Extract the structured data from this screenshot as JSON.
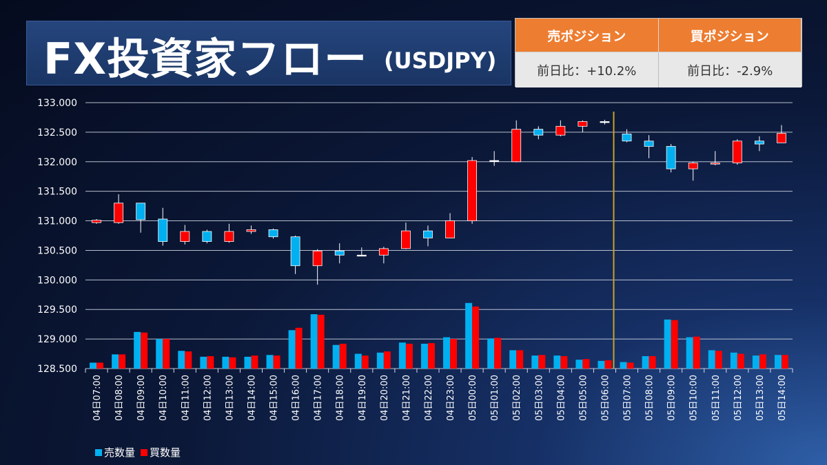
{
  "header": {
    "title": "FX投資家フロー",
    "subtitle": "(USDJPY)"
  },
  "positions": {
    "sell_label": "売ポジション",
    "sell_value": "前日比：+10.2%",
    "buy_label": "買ポジション",
    "buy_value": "前日比：-2.9%"
  },
  "colors": {
    "sell": "#00b0f0",
    "buy": "#ff0000",
    "divider": "#c9a227",
    "orange": "#ed7d31"
  },
  "chart_data": {
    "type": "candlestick",
    "ylim": [
      128.5,
      133.0
    ],
    "yticks": [
      "133.000",
      "132.500",
      "132.000",
      "131.500",
      "131.000",
      "130.500",
      "130.000",
      "129.500",
      "129.000",
      "128.500"
    ],
    "ytick_values": [
      133.0,
      132.5,
      132.0,
      131.5,
      131.0,
      130.5,
      130.0,
      129.5,
      129.0,
      128.5
    ],
    "categories": [
      "04日07:00",
      "04日08:00",
      "04日09:00",
      "04日10:00",
      "04日11:00",
      "04日12:00",
      "04日13:00",
      "04日14:00",
      "04日15:00",
      "04日16:00",
      "04日17:00",
      "04日18:00",
      "04日19:00",
      "04日20:00",
      "04日21:00",
      "04日22:00",
      "04日23:00",
      "05日00:00",
      "05日01:00",
      "05日02:00",
      "05日03:00",
      "05日04:00",
      "05日05:00",
      "05日06:00",
      "05日07:00",
      "05日08:00",
      "05日09:00",
      "05日10:00",
      "05日11:00",
      "05日12:00",
      "05日13:00",
      "05日14:00"
    ],
    "candles": [
      {
        "open": 130.97,
        "close": 131.01,
        "high": 131.03,
        "low": 130.95
      },
      {
        "open": 130.97,
        "close": 131.3,
        "high": 131.45,
        "low": 130.95
      },
      {
        "open": 131.3,
        "close": 131.02,
        "high": 131.3,
        "low": 130.8
      },
      {
        "open": 131.03,
        "close": 130.65,
        "high": 131.22,
        "low": 130.58
      },
      {
        "open": 130.65,
        "close": 130.82,
        "high": 130.93,
        "low": 130.6
      },
      {
        "open": 130.82,
        "close": 130.65,
        "high": 130.85,
        "low": 130.62
      },
      {
        "open": 130.65,
        "close": 130.82,
        "high": 130.95,
        "low": 130.63
      },
      {
        "open": 130.82,
        "close": 130.85,
        "high": 130.92,
        "low": 130.78
      },
      {
        "open": 130.85,
        "close": 130.73,
        "high": 130.87,
        "low": 130.7
      },
      {
        "open": 130.73,
        "close": 130.24,
        "high": 130.75,
        "low": 130.1
      },
      {
        "open": 130.24,
        "close": 130.49,
        "high": 130.52,
        "low": 129.92
      },
      {
        "open": 130.49,
        "close": 130.42,
        "high": 130.62,
        "low": 130.28
      },
      {
        "open": 130.42,
        "close": 130.42,
        "high": 130.55,
        "low": 130.4
      },
      {
        "open": 130.42,
        "close": 130.53,
        "high": 130.56,
        "low": 130.28
      },
      {
        "open": 130.53,
        "close": 130.83,
        "high": 130.97,
        "low": 130.52
      },
      {
        "open": 130.83,
        "close": 130.71,
        "high": 130.92,
        "low": 130.57
      },
      {
        "open": 130.71,
        "close": 131.0,
        "high": 131.13,
        "low": 130.71
      },
      {
        "open": 131.0,
        "close": 132.02,
        "high": 132.08,
        "low": 130.95
      },
      {
        "open": 132.02,
        "close": 132.02,
        "high": 132.18,
        "low": 131.93
      },
      {
        "open": 132.0,
        "close": 132.55,
        "high": 132.7,
        "low": 131.99
      },
      {
        "open": 132.55,
        "close": 132.45,
        "high": 132.6,
        "low": 132.38
      },
      {
        "open": 132.45,
        "close": 132.6,
        "high": 132.7,
        "low": 132.43
      },
      {
        "open": 132.6,
        "close": 132.68,
        "high": 132.7,
        "low": 132.5
      },
      {
        "open": 132.68,
        "close": 132.68,
        "high": 132.71,
        "low": 132.63
      },
      {
        "open": 132.47,
        "close": 132.35,
        "high": 132.55,
        "low": 132.33
      },
      {
        "open": 132.35,
        "close": 132.26,
        "high": 132.45,
        "low": 132.06
      },
      {
        "open": 132.26,
        "close": 131.88,
        "high": 132.3,
        "low": 131.82
      },
      {
        "open": 131.88,
        "close": 131.98,
        "high": 132.0,
        "low": 131.68
      },
      {
        "open": 131.96,
        "close": 131.98,
        "high": 132.18,
        "low": 131.94
      },
      {
        "open": 131.98,
        "close": 132.35,
        "high": 132.38,
        "low": 131.95
      },
      {
        "open": 132.35,
        "close": 132.3,
        "high": 132.43,
        "low": 132.18
      },
      {
        "open": 132.32,
        "close": 132.48,
        "high": 132.62,
        "low": 132.32
      }
    ],
    "volume_sell": [
      128.6,
      128.74,
      129.12,
      129.0,
      128.8,
      128.7,
      128.7,
      128.7,
      128.73,
      129.15,
      129.42,
      128.9,
      128.75,
      128.77,
      128.94,
      128.92,
      129.03,
      129.61,
      129.01,
      128.81,
      128.72,
      128.72,
      128.65,
      128.63,
      128.61,
      128.71,
      129.33,
      129.03,
      128.81,
      128.77,
      128.72,
      128.73
    ],
    "volume_buy": [
      128.6,
      128.74,
      129.11,
      129.0,
      128.79,
      128.71,
      128.69,
      128.72,
      128.72,
      129.19,
      129.41,
      128.92,
      128.72,
      128.79,
      128.92,
      128.93,
      129.0,
      129.55,
      129.02,
      128.81,
      128.73,
      128.71,
      128.66,
      128.64,
      128.6,
      128.71,
      129.32,
      129.04,
      128.8,
      128.75,
      128.74,
      128.73
    ],
    "divider_after_category": "05日06:00",
    "legend": [
      "売数量",
      "買数量"
    ]
  }
}
